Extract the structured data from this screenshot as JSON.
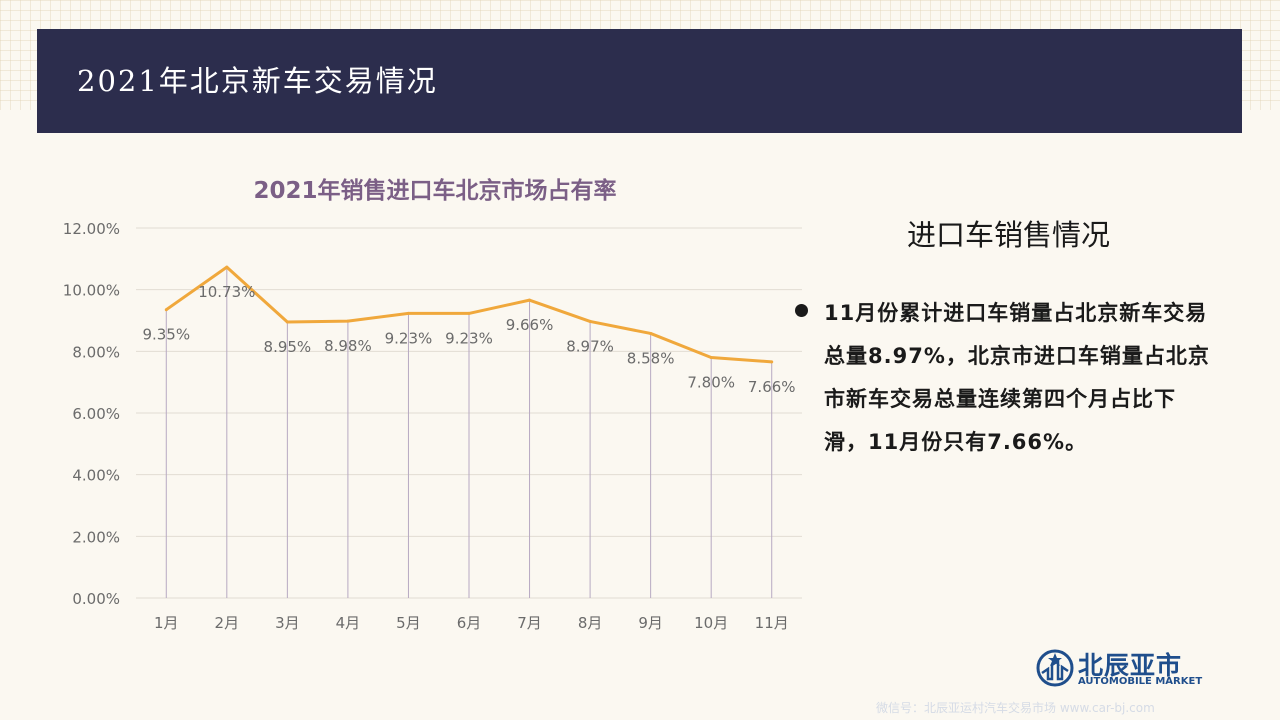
{
  "header": {
    "title": "2021年北京新车交易情况"
  },
  "chart_data": {
    "type": "line",
    "title": "2021年销售进口车北京市场占有率",
    "categories": [
      "1月",
      "2月",
      "3月",
      "4月",
      "5月",
      "6月",
      "7月",
      "8月",
      "9月",
      "10月",
      "11月"
    ],
    "series": [
      {
        "values": [
          9.35,
          10.73,
          8.95,
          8.98,
          9.23,
          9.23,
          9.66,
          8.97,
          8.58,
          7.8,
          7.66
        ]
      }
    ],
    "data_labels": [
      "9.35%",
      "10.73%",
      "8.95%",
      "8.98%",
      "9.23%",
      "9.23%",
      "9.66%",
      "8.97%",
      "8.58%",
      "7.80%",
      "7.66%"
    ],
    "yticks": [
      "0.00%",
      "2.00%",
      "4.00%",
      "6.00%",
      "8.00%",
      "10.00%",
      "12.00%"
    ],
    "ylim": [
      0,
      12
    ],
    "grid": true,
    "colors": {
      "line": "#f0a83c",
      "drop_line": "#b7a9c2",
      "label": "#6b6b6b",
      "title": "#7b5f86"
    }
  },
  "side_panel": {
    "title": "进口车销售情况",
    "bullet_text": "11月份累计进口车销量占北京新车交易总量8.97%，北京市进口车销量占北京市新车交易总量连续第四个月占比下滑，11月份只有7.66%。"
  },
  "logo": {
    "cn": "北辰亚市",
    "en": "AUTOMOBILE MARKET"
  },
  "watermark": "微信号：北辰亚运村汽车交易市场 www.car-bj.com"
}
